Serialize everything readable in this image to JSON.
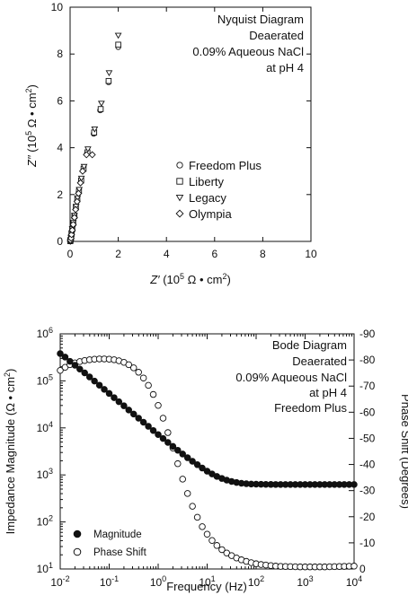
{
  "chart_data": [
    {
      "type": "scatter",
      "x_axis": {
        "ticks": [
          "0",
          "2",
          "4",
          "6",
          "8",
          "10"
        ],
        "range": [
          0,
          10
        ]
      },
      "y_axis": {
        "ticks": [
          "0",
          "2",
          "4",
          "6",
          "8",
          "10"
        ],
        "range": [
          0,
          10
        ]
      },
      "annotations": [
        "Nyquist Diagram",
        "Deaerated",
        "0.09% Aqueous NaCl",
        "at pH 4"
      ],
      "legend": {
        "placement": "lower-right"
      },
      "series": [
        {
          "name": "Freedom Plus",
          "marker": "circle",
          "points": [
            [
              0.01,
              0.01
            ],
            [
              0.02,
              0.06
            ],
            [
              0.04,
              0.15
            ],
            [
              0.06,
              0.3
            ],
            [
              0.09,
              0.5
            ],
            [
              0.13,
              0.75
            ],
            [
              0.18,
              1.05
            ],
            [
              0.24,
              1.4
            ],
            [
              0.3,
              1.75
            ],
            [
              0.36,
              2.1
            ],
            [
              0.45,
              2.55
            ],
            [
              0.55,
              3.05
            ],
            [
              0.7,
              3.75
            ],
            [
              0.98,
              4.6
            ],
            [
              1.25,
              5.6
            ],
            [
              1.6,
              6.8
            ],
            [
              2.0,
              8.3
            ]
          ]
        },
        {
          "name": "Liberty",
          "marker": "square",
          "points": [
            [
              0.01,
              0.01
            ],
            [
              0.02,
              0.06
            ],
            [
              0.04,
              0.16
            ],
            [
              0.06,
              0.32
            ],
            [
              0.09,
              0.52
            ],
            [
              0.13,
              0.78
            ],
            [
              0.18,
              1.08
            ],
            [
              0.24,
              1.45
            ],
            [
              0.3,
              1.8
            ],
            [
              0.37,
              2.15
            ],
            [
              0.46,
              2.6
            ],
            [
              0.56,
              3.1
            ],
            [
              0.72,
              3.8
            ],
            [
              1.0,
              4.65
            ],
            [
              1.27,
              5.65
            ],
            [
              1.6,
              6.85
            ],
            [
              2.0,
              8.4
            ]
          ]
        },
        {
          "name": "Legacy",
          "marker": "triangle-down",
          "points": [
            [
              0.01,
              0.01
            ],
            [
              0.02,
              0.07
            ],
            [
              0.04,
              0.17
            ],
            [
              0.06,
              0.34
            ],
            [
              0.09,
              0.55
            ],
            [
              0.13,
              0.82
            ],
            [
              0.18,
              1.12
            ],
            [
              0.25,
              1.5
            ],
            [
              0.31,
              1.86
            ],
            [
              0.38,
              2.22
            ],
            [
              0.47,
              2.7
            ],
            [
              0.58,
              3.2
            ],
            [
              0.74,
              3.95
            ],
            [
              1.02,
              4.8
            ],
            [
              1.3,
              5.9
            ],
            [
              1.62,
              7.2
            ],
            [
              2.0,
              8.8
            ]
          ]
        },
        {
          "name": "Olympia",
          "marker": "diamond",
          "points": [
            [
              0.01,
              0.01
            ],
            [
              0.02,
              0.05
            ],
            [
              0.04,
              0.14
            ],
            [
              0.06,
              0.29
            ],
            [
              0.09,
              0.48
            ],
            [
              0.13,
              0.72
            ],
            [
              0.18,
              1.02
            ],
            [
              0.23,
              1.36
            ],
            [
              0.29,
              1.7
            ],
            [
              0.35,
              2.05
            ],
            [
              0.43,
              2.5
            ],
            [
              0.52,
              3.0
            ],
            [
              0.68,
              3.7
            ],
            [
              0.92,
              3.7
            ]
          ]
        }
      ]
    },
    {
      "type": "scatter",
      "x_axis": {
        "title": "Frequency (Hz)",
        "scale": "log",
        "range": [
          0.01,
          10000
        ]
      },
      "y_axis": {
        "title": "Impedance Magnitude (Ω • cm²)",
        "scale": "log",
        "range": [
          10,
          1000000
        ]
      },
      "y2_axis": {
        "title": "Phase Shift (Degrees)",
        "range": [
          0,
          -90
        ],
        "ticks": [
          "-90",
          "-80",
          "-70",
          "-60",
          "-50",
          "-40",
          "-30",
          "-20",
          "-10",
          "0"
        ]
      },
      "annotations": [
        "Bode Diagram",
        "Deaerated",
        "0.09% Aqueous NaCl",
        "at pH 4",
        "Freedom Plus"
      ],
      "legend": {
        "placement": "bottom-left"
      },
      "series": [
        {
          "name": "Magnitude",
          "marker": "filled-circle",
          "axis": "left",
          "x": [
            0.01,
            0.0126,
            0.0158,
            0.02,
            0.0251,
            0.0316,
            0.0398,
            0.0501,
            0.0631,
            0.0794,
            0.1,
            0.126,
            0.158,
            0.2,
            0.251,
            0.316,
            0.398,
            0.501,
            0.631,
            0.794,
            1,
            1.26,
            1.58,
            2,
            2.51,
            3.16,
            3.98,
            5.01,
            6.31,
            7.94,
            10,
            12.6,
            15.8,
            20,
            25.1,
            31.6,
            39.8,
            50.1,
            63.1,
            79.4,
            100,
            126,
            158,
            200,
            251,
            316,
            398,
            501,
            631,
            794,
            1000,
            1259,
            1585,
            1995,
            2512,
            3162,
            3981,
            5012,
            6310,
            7943,
            10000
          ],
          "y": [
            380000,
            320000,
            260000,
            215000,
            178000,
            148000,
            121000,
            99000,
            81000,
            66000,
            54000,
            44000,
            36000,
            29500,
            24000,
            19700,
            16100,
            13200,
            10800,
            8800,
            7200,
            5950,
            4900,
            4050,
            3350,
            2780,
            2320,
            1950,
            1650,
            1400,
            1200,
            1050,
            930,
            840,
            775,
            725,
            690,
            665,
            650,
            640,
            635,
            632,
            630,
            628,
            627,
            626,
            626,
            625,
            625,
            625,
            625,
            625,
            625,
            625,
            625,
            625,
            625,
            625,
            625,
            625,
            625
          ]
        },
        {
          "name": "Phase Shift",
          "marker": "open-circle",
          "axis": "right",
          "x": [
            0.01,
            0.0126,
            0.0158,
            0.02,
            0.0251,
            0.0316,
            0.0398,
            0.0501,
            0.0631,
            0.0794,
            0.1,
            0.126,
            0.158,
            0.2,
            0.251,
            0.316,
            0.398,
            0.501,
            0.631,
            0.794,
            1,
            1.26,
            1.58,
            2,
            2.51,
            3.16,
            3.98,
            5.01,
            6.31,
            7.94,
            10,
            12.6,
            15.8,
            20,
            25.1,
            31.6,
            39.8,
            50.1,
            63.1,
            79.4,
            100,
            126,
            158,
            200,
            251,
            316,
            398,
            501,
            631,
            794,
            1000,
            1259,
            1585,
            1995,
            2512,
            3162,
            3981,
            5012,
            6310,
            7943,
            10000
          ],
          "y": [
            -76,
            -77.2,
            -78.2,
            -78.9,
            -79.4,
            -79.8,
            -80.1,
            -80.3,
            -80.4,
            -80.4,
            -80.3,
            -80.1,
            -79.7,
            -79.1,
            -78.2,
            -77,
            -75.3,
            -73.1,
            -70.3,
            -66.8,
            -62.6,
            -57.7,
            -52.2,
            -46.3,
            -40.3,
            -34.4,
            -28.9,
            -24,
            -19.8,
            -16.2,
            -13.3,
            -10.9,
            -9,
            -7.4,
            -6.1,
            -5.1,
            -4.2,
            -3.5,
            -2.9,
            -2.4,
            -2,
            -1.7,
            -1.5,
            -1.3,
            -1.1,
            -1,
            -0.95,
            -0.9,
            -0.85,
            -0.8,
            -0.8,
            -0.8,
            -0.8,
            -0.8,
            -0.8,
            -0.85,
            -0.9,
            -0.95,
            -1,
            -1.05,
            -1.1
          ]
        }
      ]
    }
  ]
}
